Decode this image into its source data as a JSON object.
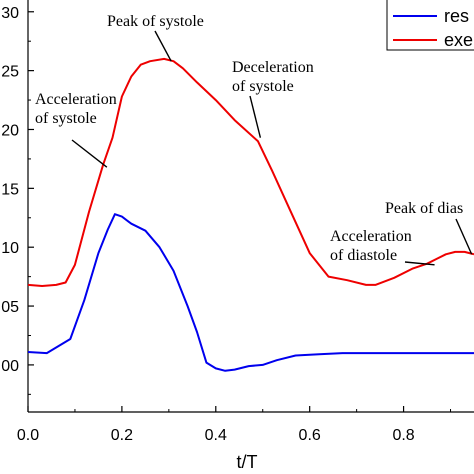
{
  "chart_data": {
    "type": "line",
    "title": "",
    "xlabel": "t/T",
    "ylabel": "",
    "xlim": [
      0.0,
      0.95
    ],
    "ylim": [
      0.96,
      1.31
    ],
    "grid": false,
    "legend_position": "top-right",
    "x_ticks": [
      "0.0",
      "0.2",
      "0.4",
      "0.6",
      "0.8"
    ],
    "x_tick_values": [
      0.0,
      0.2,
      0.4,
      0.6,
      0.8
    ],
    "y_ticks": [
      "30",
      "25",
      "20",
      "15",
      "10",
      "05",
      "00"
    ],
    "y_tick_values": [
      1.3,
      1.25,
      1.2,
      1.15,
      1.1,
      1.05,
      1.0
    ],
    "series": [
      {
        "name": "res",
        "color": "#0000ee",
        "x": [
          0.0,
          0.04,
          0.09,
          0.12,
          0.15,
          0.17,
          0.185,
          0.2,
          0.22,
          0.25,
          0.28,
          0.31,
          0.34,
          0.36,
          0.38,
          0.4,
          0.42,
          0.44,
          0.47,
          0.5,
          0.53,
          0.57,
          0.62,
          0.67,
          0.72,
          0.78,
          0.84,
          0.9,
          0.95
        ],
        "y": [
          1.011,
          1.01,
          1.022,
          1.055,
          1.095,
          1.115,
          1.128,
          1.126,
          1.12,
          1.114,
          1.1,
          1.08,
          1.05,
          1.028,
          1.002,
          0.997,
          0.995,
          0.996,
          0.999,
          1.0,
          1.004,
          1.008,
          1.009,
          1.01,
          1.01,
          1.01,
          1.01,
          1.01,
          1.01
        ]
      },
      {
        "name": "exe",
        "color": "#ee0000",
        "x": [
          0.0,
          0.03,
          0.06,
          0.08,
          0.1,
          0.13,
          0.16,
          0.18,
          0.2,
          0.22,
          0.24,
          0.26,
          0.29,
          0.31,
          0.33,
          0.36,
          0.4,
          0.44,
          0.49,
          0.52,
          0.56,
          0.6,
          0.64,
          0.68,
          0.72,
          0.74,
          0.78,
          0.82,
          0.85,
          0.87,
          0.89,
          0.91,
          0.93,
          0.95
        ],
        "y": [
          1.068,
          1.067,
          1.068,
          1.07,
          1.085,
          1.13,
          1.17,
          1.193,
          1.228,
          1.245,
          1.255,
          1.258,
          1.26,
          1.258,
          1.252,
          1.24,
          1.225,
          1.208,
          1.19,
          1.165,
          1.13,
          1.095,
          1.075,
          1.072,
          1.068,
          1.068,
          1.074,
          1.082,
          1.086,
          1.09,
          1.094,
          1.096,
          1.096,
          1.094
        ]
      }
    ],
    "annotations": [
      {
        "text": "Peak of systole",
        "point": [
          0.305,
          1.258
        ]
      },
      {
        "text": "Acceleration",
        "text2": "of systole",
        "point": [
          0.168,
          1.168
        ]
      },
      {
        "text": "Deceleration",
        "text2": "of systole",
        "point": [
          0.495,
          1.193
        ]
      },
      {
        "text": "Acceleration",
        "text2": "of diastole",
        "point": [
          0.866,
          1.085
        ]
      },
      {
        "text": "Peak of dias",
        "point": [
          0.945,
          1.094
        ]
      }
    ]
  }
}
